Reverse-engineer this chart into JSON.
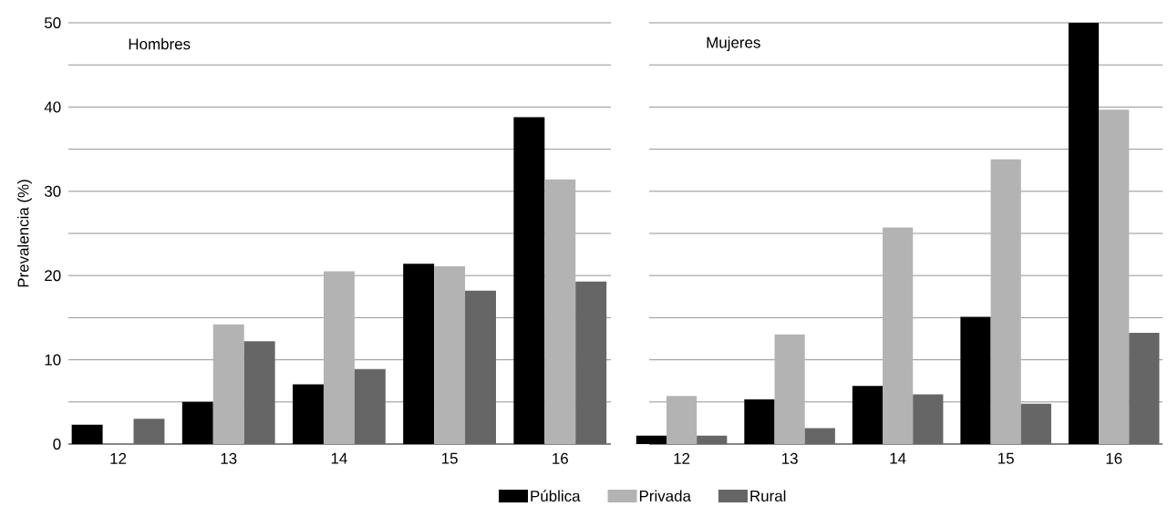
{
  "chart_data": [
    {
      "type": "bar",
      "title": "Hombres",
      "ylabel": "Prevalencia (%)",
      "categories": [
        "12",
        "13",
        "14",
        "15",
        "16"
      ],
      "series": [
        {
          "name": "Pública",
          "color": "#000000",
          "values": [
            2.3,
            5.0,
            7.1,
            21.4,
            38.8
          ]
        },
        {
          "name": "Privada",
          "color": "#b3b3b3",
          "values": [
            null,
            14.2,
            20.5,
            21.1,
            31.4
          ]
        },
        {
          "name": "Rural",
          "color": "#666666",
          "values": [
            3.0,
            12.2,
            8.9,
            18.2,
            19.3
          ]
        }
      ],
      "ylim": [
        0,
        50
      ],
      "yticks": [
        0,
        {
          "value": 5,
          "label": null
        },
        10,
        {
          "value": 15,
          "label": null
        },
        20,
        {
          "value": 25,
          "label": null
        },
        30,
        {
          "value": 35,
          "label": null
        },
        40,
        {
          "value": 45,
          "label": null
        },
        50
      ],
      "grid": "y",
      "legend": "bottom"
    },
    {
      "type": "bar",
      "title": "Mujeres",
      "categories": [
        "12",
        "13",
        "14",
        "15",
        "16"
      ],
      "series": [
        {
          "color": "#000000",
          "values": [
            1.0,
            5.3,
            6.9,
            15.1,
            50
          ]
        },
        {
          "color": "#b3b3b3",
          "values": [
            5.7,
            13.0,
            25.7,
            33.8,
            39.7
          ]
        },
        {
          "color": "#666666",
          "values": [
            1.0,
            1.9,
            5.9,
            4.8,
            13.2
          ]
        }
      ],
      "ylim": [
        0,
        50
      ],
      "yticks": [
        0,
        {
          "value": 5,
          "label": null
        },
        10,
        {
          "value": 15,
          "label": null
        },
        20,
        {
          "value": 25,
          "label": null
        },
        30,
        {
          "value": 35,
          "label": null
        },
        40,
        {
          "value": 45,
          "label": null
        },
        50
      ],
      "grid": "y",
      "tick_labels": "x"
    }
  ]
}
